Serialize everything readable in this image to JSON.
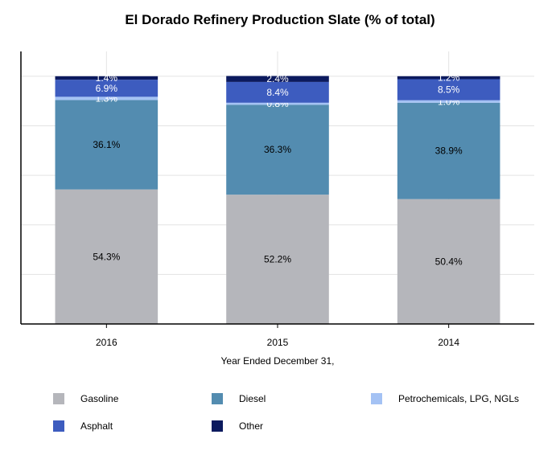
{
  "chart_data": {
    "type": "bar",
    "stacked": true,
    "title": "El Dorado Refinery Production Slate (% of total)",
    "xlabel": "Year Ended December 31,",
    "ylabel": "",
    "ylim": [
      0,
      110
    ],
    "grid": true,
    "legend_position": "bottom",
    "categories": [
      "2016",
      "2015",
      "2014"
    ],
    "series": [
      {
        "name": "Gasoline",
        "values": [
          54.3,
          52.2,
          50.4
        ],
        "labels": [
          "54.3%",
          "52.2%",
          "50.4%"
        ],
        "color": "#b5b6bb",
        "label_color": "#000000"
      },
      {
        "name": "Diesel",
        "values": [
          36.1,
          36.3,
          38.9
        ],
        "labels": [
          "36.1%",
          "36.3%",
          "38.9%"
        ],
        "color": "#538cb0",
        "label_color": "#000000"
      },
      {
        "name": "Petrochemicals, LPG, NGLs",
        "values": [
          1.3,
          0.8,
          1.0
        ],
        "labels": [
          "1.3%",
          "0.8%",
          "1.0%"
        ],
        "color": "#a4c2f4",
        "label_color": "#ffffff"
      },
      {
        "name": "Asphalt",
        "values": [
          6.9,
          8.4,
          8.5
        ],
        "labels": [
          "6.9%",
          "8.4%",
          "8.5%"
        ],
        "color": "#3d5cbf",
        "label_color": "#ffffff"
      },
      {
        "name": "Other",
        "values": [
          1.4,
          2.4,
          1.2
        ],
        "labels": [
          "1.4%",
          "2.4%",
          "1.2%"
        ],
        "color": "#0c1a5e",
        "label_color": "#ffffff"
      }
    ]
  }
}
